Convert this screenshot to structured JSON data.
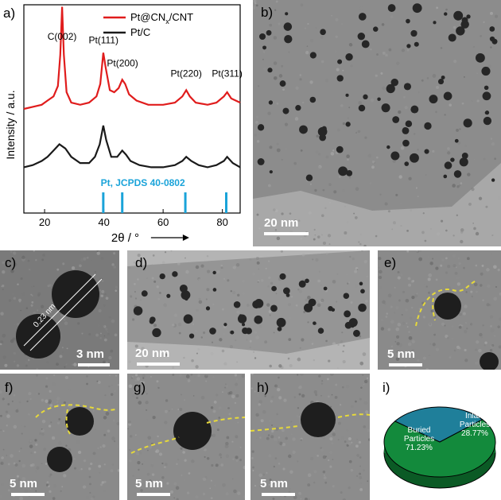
{
  "chart_data": {
    "type": "line",
    "xlabel": "2θ / °",
    "ylabel": "Intensity / a.u.",
    "xlim": [
      13,
      86
    ],
    "xticks": [
      20,
      40,
      60,
      80
    ],
    "grid": false,
    "legend_position": "top-right",
    "series": [
      {
        "name": "Pt@CN",
        "subscript": "x",
        "suffix": "/CNT",
        "color": "#e01c1c",
        "x": [
          13,
          16,
          19,
          21,
          23,
          24.5,
          25.3,
          25.9,
          26.5,
          27.4,
          29,
          32,
          35,
          37.5,
          38.8,
          39.8,
          40.6,
          42,
          43.5,
          45,
          46.2,
          47.2,
          48.5,
          51,
          55,
          60,
          64,
          66.5,
          67.8,
          69,
          71,
          75,
          78,
          80.5,
          81.6,
          83,
          86
        ],
        "y": [
          0.5,
          0.51,
          0.52,
          0.54,
          0.56,
          0.61,
          0.76,
          0.99,
          0.76,
          0.58,
          0.53,
          0.52,
          0.53,
          0.56,
          0.62,
          0.77,
          0.7,
          0.59,
          0.58,
          0.6,
          0.64,
          0.62,
          0.57,
          0.54,
          0.52,
          0.52,
          0.53,
          0.56,
          0.59,
          0.56,
          0.53,
          0.52,
          0.53,
          0.56,
          0.58,
          0.55,
          0.53
        ]
      },
      {
        "name": "Pt/C",
        "color": "#1a1a1a",
        "x": [
          13,
          16,
          19,
          21,
          23,
          25,
          27,
          29,
          32,
          35,
          37,
          38.6,
          39.8,
          40.8,
          42.5,
          44.5,
          46.2,
          47.5,
          49,
          52,
          56,
          60,
          64,
          66.5,
          67.8,
          69.5,
          72,
          75,
          78,
          80.5,
          81.6,
          83.5,
          86
        ],
        "y": [
          0.22,
          0.23,
          0.25,
          0.27,
          0.3,
          0.33,
          0.31,
          0.27,
          0.24,
          0.24,
          0.27,
          0.33,
          0.42,
          0.35,
          0.27,
          0.27,
          0.3,
          0.28,
          0.25,
          0.23,
          0.22,
          0.22,
          0.23,
          0.25,
          0.27,
          0.25,
          0.23,
          0.22,
          0.23,
          0.25,
          0.27,
          0.24,
          0.22
        ]
      }
    ],
    "annotations": [
      {
        "text": "C(002)",
        "x": 25.9
      },
      {
        "text": "Pt(111)",
        "x": 39.9
      },
      {
        "text": "Pt(200)",
        "x": 46.3
      },
      {
        "text": "Pt(220)",
        "x": 67.8
      },
      {
        "text": "Pt(311)",
        "x": 81.6
      }
    ],
    "reference": {
      "label": "Pt, JCPDS 40-0802",
      "color": "#1aa3d9",
      "x": [
        39.8,
        46.2,
        67.5,
        81.3
      ]
    }
  },
  "panels": {
    "a": "a)",
    "b": "b)",
    "c": "c)",
    "d": "d)",
    "e": "e)",
    "f": "f)",
    "g": "g)",
    "h": "h)",
    "i": "i)"
  },
  "scalebars": {
    "b": "20 nm",
    "c": "3 nm",
    "d": "20 nm",
    "e": "5 nm",
    "f": "5 nm",
    "g": "5 nm",
    "h": "5 nm"
  },
  "lattice_label": "0.23 nm",
  "pie": {
    "slices": [
      {
        "label_lines": [
          "Buried",
          "Particles"
        ],
        "value_text": "71.23%",
        "value": 71.23,
        "color": "#138a3c"
      },
      {
        "label_lines": [
          "Inlaid",
          "Particles"
        ],
        "value_text": "28.77%",
        "value": 28.77,
        "color": "#1f7f9a"
      }
    ]
  }
}
